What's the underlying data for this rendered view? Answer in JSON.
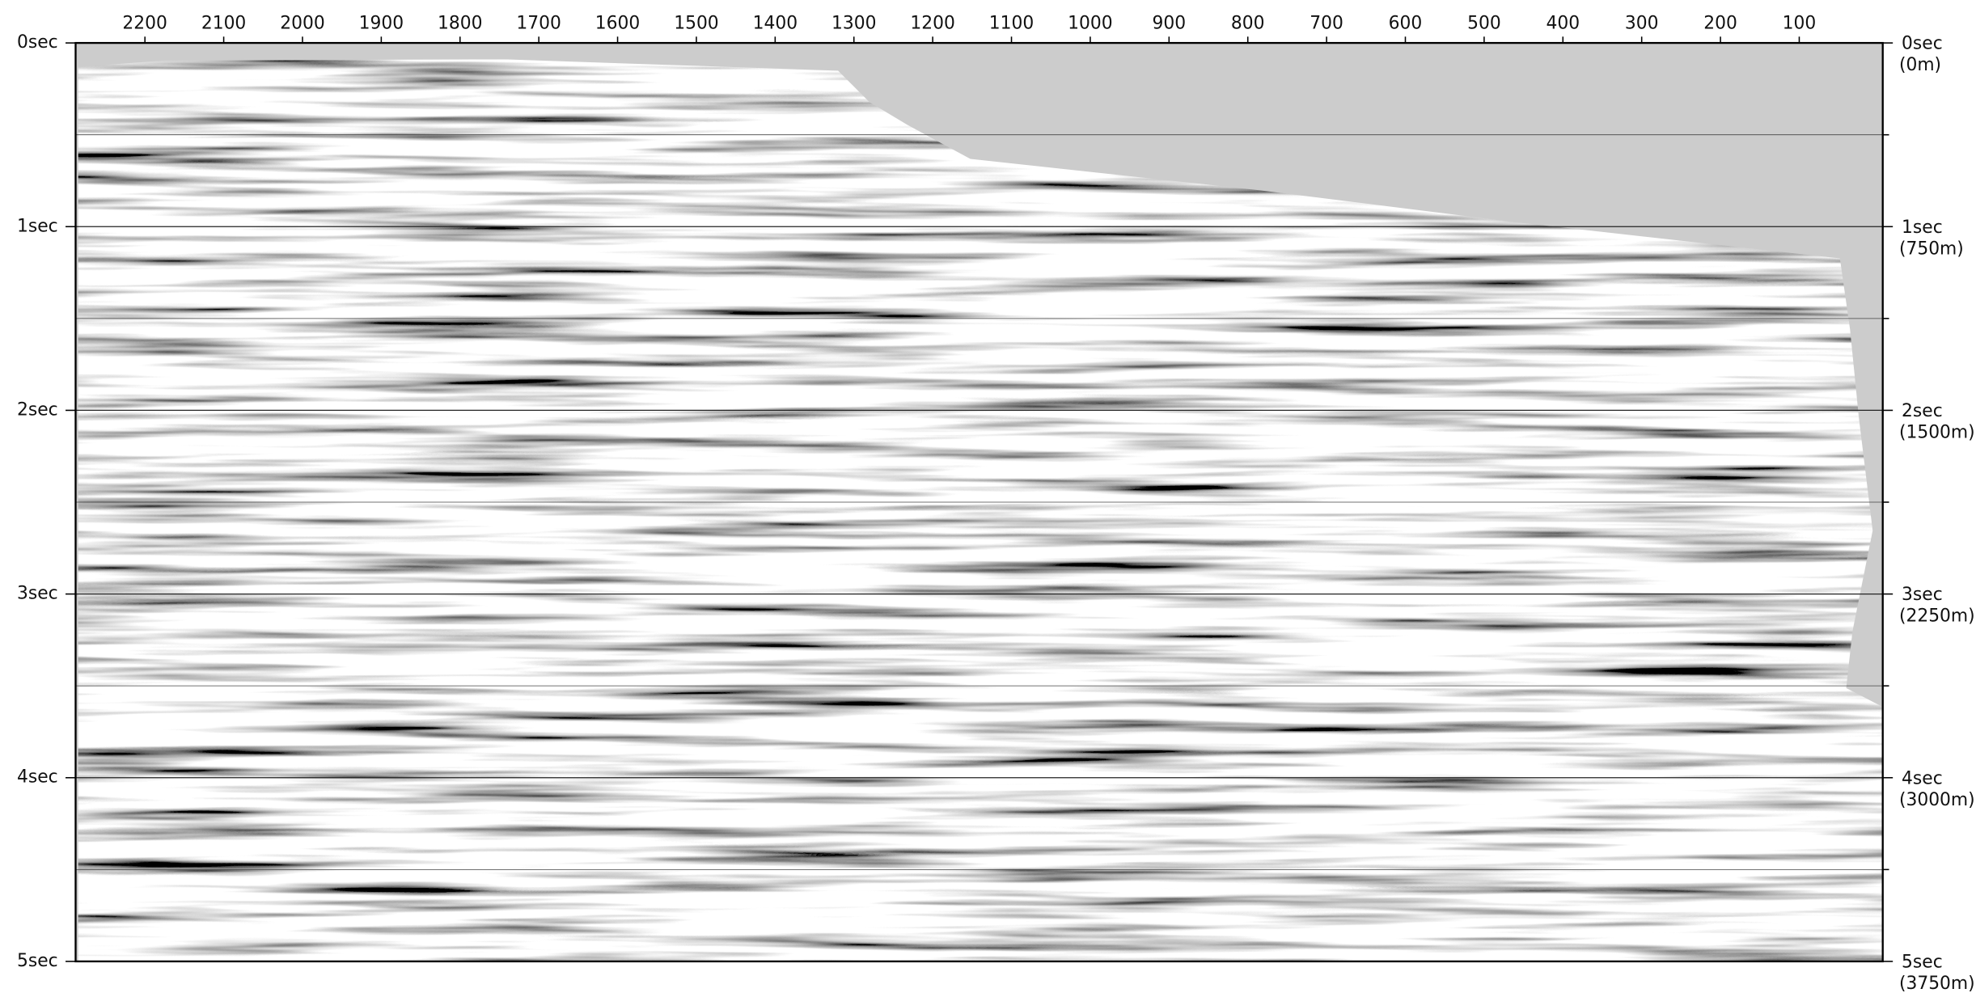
{
  "chart_data": {
    "type": "seismic-section",
    "xlim": [
      2288,
      -6
    ],
    "xticks": [
      2200,
      2100,
      2000,
      1900,
      1800,
      1700,
      1600,
      1500,
      1400,
      1300,
      1200,
      1100,
      1000,
      900,
      800,
      700,
      600,
      500,
      400,
      300,
      200,
      100
    ],
    "ylim": [
      0,
      5
    ],
    "yticks": [
      {
        "value": 0,
        "label": "0sec"
      },
      {
        "value": 1,
        "label": "1sec"
      },
      {
        "value": 2,
        "label": "2sec"
      },
      {
        "value": 3,
        "label": "3sec"
      },
      {
        "value": 4,
        "label": "4sec"
      },
      {
        "value": 5,
        "label": "5sec"
      }
    ],
    "minor_yticks": [
      0.5,
      1.5,
      2.5,
      3.5,
      4.5
    ],
    "y2lim": [
      0,
      5
    ],
    "y2ticks": [
      {
        "value": 0,
        "label": "0sec"
      },
      {
        "value": 1,
        "label": "1sec"
      },
      {
        "value": 2,
        "label": "2sec"
      },
      {
        "value": 3,
        "label": "3sec"
      },
      {
        "value": 4,
        "label": "4sec"
      },
      {
        "value": 5,
        "label": "5sec"
      }
    ],
    "y2_depth_labels": [
      "(0m)",
      "(750m)",
      "(1500m)",
      "(2250m)",
      "(3000m)",
      "(3750m)"
    ],
    "grid": true,
    "water_color": "#cccccc"
  }
}
